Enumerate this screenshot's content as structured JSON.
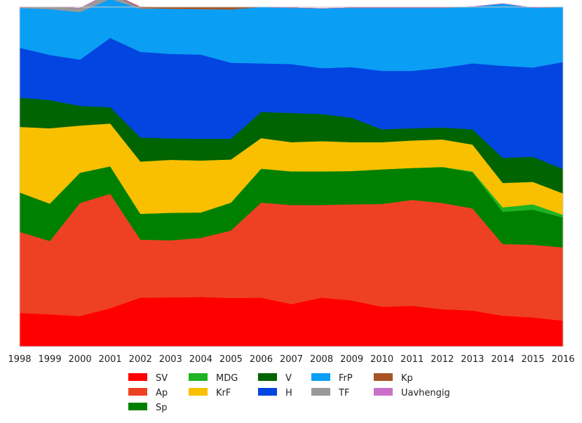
{
  "chart_data": {
    "type": "area",
    "stacked": true,
    "normalized": true,
    "x": [
      "1998",
      "1999",
      "2000",
      "2001",
      "2002",
      "2003",
      "2004",
      "2005",
      "2006",
      "2007",
      "2008",
      "2009",
      "2010",
      "2011",
      "2012",
      "2013",
      "2014",
      "2015",
      "2016"
    ],
    "ylim": [
      0,
      1
    ],
    "grid": false,
    "legend_position": "bottom",
    "series": [
      {
        "name": "SV",
        "color": "#ff0000",
        "values": [
          0.099,
          0.095,
          0.09,
          0.113,
          0.144,
          0.145,
          0.146,
          0.143,
          0.144,
          0.125,
          0.144,
          0.136,
          0.117,
          0.12,
          0.11,
          0.106,
          0.091,
          0.086,
          0.076
        ]
      },
      {
        "name": "Ap",
        "color": "#ee4124",
        "values": [
          0.239,
          0.216,
          0.333,
          0.337,
          0.171,
          0.168,
          0.174,
          0.199,
          0.28,
          0.292,
          0.273,
          0.283,
          0.303,
          0.312,
          0.313,
          0.301,
          0.211,
          0.214,
          0.216
        ]
      },
      {
        "name": "Sp",
        "color": "#008000",
        "values": [
          0.116,
          0.11,
          0.089,
          0.081,
          0.076,
          0.081,
          0.075,
          0.082,
          0.1,
          0.099,
          0.099,
          0.098,
          0.102,
          0.094,
          0.106,
          0.106,
          0.095,
          0.103,
          0.088
        ]
      },
      {
        "name": "MDG",
        "color": "#1db322",
        "values": [
          0,
          0,
          0,
          0,
          0,
          0,
          0,
          0,
          0,
          0,
          0,
          0,
          0,
          0,
          0,
          0.003,
          0.013,
          0.016,
          0.008
        ]
      },
      {
        "name": "KrF",
        "color": "#f8c000",
        "values": [
          0.193,
          0.222,
          0.139,
          0.126,
          0.154,
          0.156,
          0.153,
          0.127,
          0.09,
          0.086,
          0.089,
          0.085,
          0.08,
          0.081,
          0.081,
          0.079,
          0.072,
          0.066,
          0.063
        ]
      },
      {
        "name": "V",
        "color": "#006400",
        "values": [
          0.086,
          0.083,
          0.058,
          0.048,
          0.071,
          0.063,
          0.064,
          0.061,
          0.077,
          0.086,
          0.08,
          0.072,
          0.038,
          0.036,
          0.035,
          0.045,
          0.074,
          0.074,
          0.072
        ]
      },
      {
        "name": "H",
        "color": "#0345e0",
        "values": [
          0.147,
          0.133,
          0.136,
          0.204,
          0.252,
          0.249,
          0.248,
          0.224,
          0.143,
          0.144,
          0.135,
          0.149,
          0.172,
          0.169,
          0.176,
          0.194,
          0.271,
          0.263,
          0.315
        ]
      },
      {
        "name": "FrP",
        "color": "#0a9ef5",
        "values": [
          0.117,
          0.135,
          0.14,
          0.115,
          0.127,
          0.133,
          0.134,
          0.157,
          0.166,
          0.166,
          0.176,
          0.175,
          0.186,
          0.186,
          0.177,
          0.167,
          0.183,
          0.176,
          0.162
        ]
      },
      {
        "name": "TF",
        "color": "#999999",
        "values": [
          0.002,
          0.006,
          0.012,
          0.016,
          0.002,
          0.0,
          0.0,
          0.0,
          0,
          0,
          0,
          0,
          0,
          0,
          0,
          0,
          0,
          0,
          0
        ]
      },
      {
        "name": "Kp",
        "color": "#a85425",
        "values": [
          0,
          0,
          0,
          0,
          0.003,
          0.005,
          0.006,
          0.007,
          0,
          0,
          0,
          0,
          0,
          0,
          0,
          0,
          0,
          0,
          0
        ]
      },
      {
        "name": "Uavhengig",
        "color": "#c971c9",
        "values": [
          0.001,
          0,
          0,
          0.002,
          0.001,
          0,
          0,
          0,
          0,
          0,
          0,
          0,
          0,
          0,
          0,
          0,
          0,
          0,
          0
        ]
      }
    ]
  }
}
